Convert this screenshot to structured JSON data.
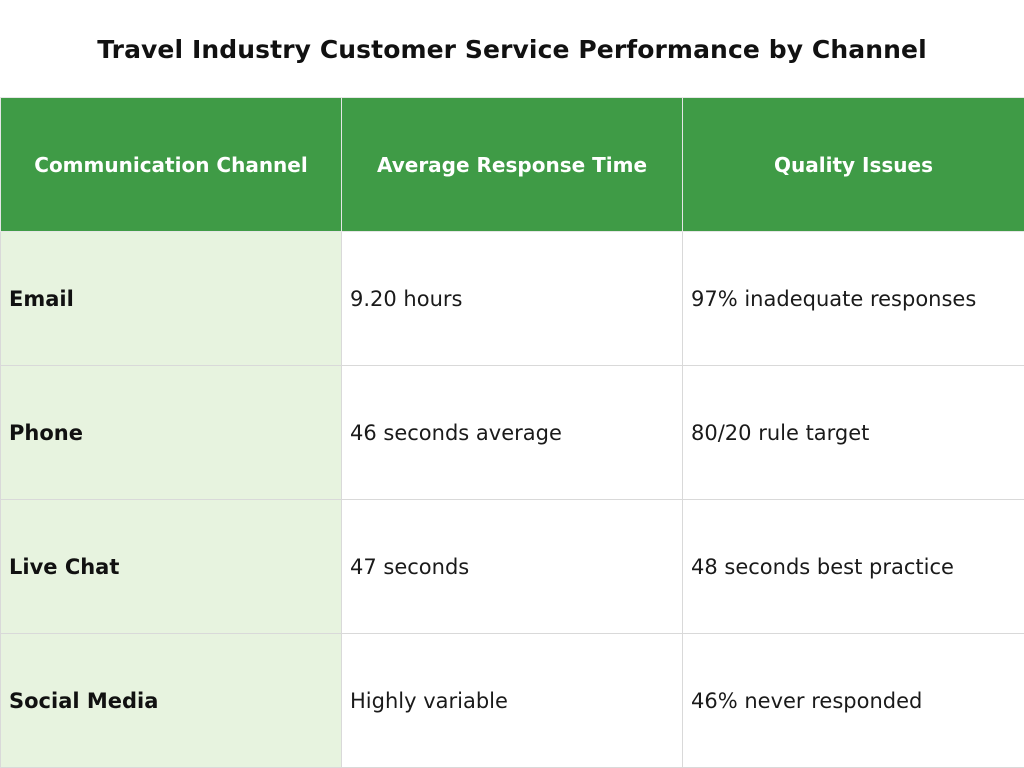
{
  "title": "Travel Industry Customer Service Performance by Channel",
  "colors": {
    "header_bg": "#3f9b46",
    "header_text": "#ffffff",
    "first_column_bg": "#e7f3df"
  },
  "table": {
    "headers": [
      "Communication Channel",
      "Average Response Time",
      "Quality Issues"
    ],
    "rows": [
      [
        "Email",
        "9.20 hours",
        "97% inadequate responses"
      ],
      [
        "Phone",
        "46 seconds average",
        "80/20 rule target"
      ],
      [
        "Live Chat",
        "47 seconds",
        "48 seconds best practice"
      ],
      [
        "Social Media",
        "Highly variable",
        "46% never responded"
      ]
    ]
  }
}
